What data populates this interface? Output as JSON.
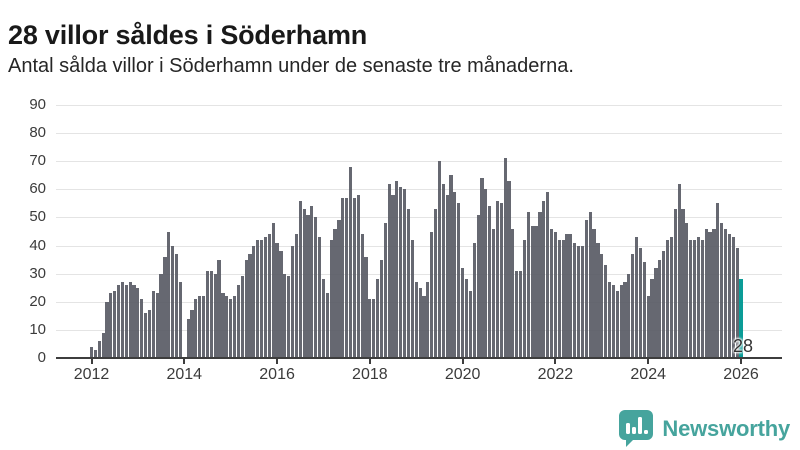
{
  "header": {
    "title": "28 villor såldes i Söderhamn",
    "subtitle": "Antal sålda villor i Söderhamn under de senaste tre månaderna."
  },
  "branding": {
    "logo_text": "Newsworthy",
    "logo_icon": "newsworthy-speech-bubble-bar-chart-icon",
    "logo_color": "#46a49d"
  },
  "colors": {
    "bar": "#6b6e76",
    "highlight_bar": "#0a9e99",
    "gridline": "#e4e4e4",
    "axis": "#3d3d3d",
    "annotation_text": "#333333"
  },
  "chart_data": {
    "type": "bar",
    "title": "28 villor såldes i Söderhamn",
    "subtitle": "Antal sålda villor i Söderhamn under de senaste tre månaderna.",
    "xlabel": "",
    "ylabel": "",
    "ylim": [
      0,
      90
    ],
    "grid": true,
    "legend": false,
    "yticks": [
      0,
      10,
      20,
      30,
      40,
      50,
      60,
      70,
      80,
      90
    ],
    "xticks": [
      "2012",
      "2014",
      "2016",
      "2018",
      "2020",
      "2022",
      "2024",
      "2026"
    ],
    "annotation_label": "28",
    "highlight": "last-bar",
    "series": [
      {
        "name": "Antal sålda villor, rullande tre månader",
        "start_month": "2012-01",
        "frequency": "monthly",
        "values": [
          4,
          3,
          6,
          9,
          20,
          23,
          24,
          26,
          27,
          26,
          27,
          26,
          25,
          21,
          16,
          17,
          24,
          23,
          30,
          36,
          45,
          40,
          37,
          27,
          0,
          14,
          17,
          21,
          22,
          22,
          31,
          31,
          30,
          35,
          23,
          22,
          21,
          22,
          26,
          29,
          35,
          37,
          40,
          42,
          42,
          43,
          44,
          48,
          41,
          38,
          30,
          29,
          40,
          44,
          56,
          53,
          51,
          54,
          50,
          43,
          28,
          23,
          42,
          46,
          49,
          57,
          57,
          68,
          57,
          58,
          44,
          36,
          21,
          21,
          28,
          35,
          48,
          62,
          58,
          63,
          61,
          60,
          53,
          42,
          27,
          25,
          22,
          27,
          45,
          53,
          70,
          62,
          58,
          65,
          59,
          55,
          32,
          28,
          24,
          41,
          51,
          64,
          60,
          54,
          46,
          56,
          55,
          71,
          63,
          46,
          31,
          31,
          42,
          52,
          47,
          47,
          52,
          56,
          59,
          46,
          45,
          42,
          42,
          44,
          44,
          41,
          40,
          40,
          49,
          52,
          46,
          41,
          37,
          33,
          27,
          26,
          24,
          26,
          27,
          30,
          37,
          43,
          39,
          34,
          22,
          28,
          32,
          35,
          38,
          42,
          43,
          53,
          62,
          53,
          48,
          42,
          42,
          43,
          42,
          46,
          45,
          46,
          55,
          48,
          46,
          44,
          43,
          39,
          28
        ]
      }
    ]
  }
}
